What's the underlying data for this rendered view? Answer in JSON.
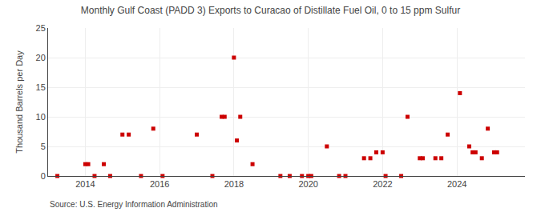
{
  "chart_data": {
    "type": "scatter",
    "title": "Monthly Gulf Coast (PADD 3) Exports to Curacao of Distillate Fuel Oil, 0 to 15 ppm Sulfur",
    "ylabel": "Thousand Barrels per Day",
    "source": "Source: U.S. Energy Information Administration",
    "color": "#cc0000",
    "marker": "square",
    "grid": true,
    "xlim": [
      2013.0,
      2025.83
    ],
    "xticks": [
      2014,
      2016,
      2018,
      2020,
      2022,
      2024
    ],
    "ylim": [
      0,
      25
    ],
    "yticks": [
      0,
      5,
      10,
      15,
      20,
      25
    ],
    "x": [
      2013.25,
      2014.0,
      2014.08,
      2014.25,
      2014.5,
      2014.67,
      2015.0,
      2015.17,
      2015.5,
      2015.83,
      2016.08,
      2017.0,
      2017.42,
      2017.67,
      2017.75,
      2018.0,
      2018.08,
      2018.17,
      2018.5,
      2019.25,
      2019.5,
      2019.83,
      2020.0,
      2020.08,
      2020.5,
      2020.83,
      2021.0,
      2021.5,
      2021.67,
      2021.83,
      2022.0,
      2022.08,
      2022.5,
      2022.67,
      2023.0,
      2023.08,
      2023.42,
      2023.58,
      2023.75,
      2024.08,
      2024.33,
      2024.42,
      2024.5,
      2024.67,
      2024.83,
      2025.0,
      2025.08
    ],
    "values": [
      0,
      2,
      2,
      0,
      2,
      0,
      7,
      7,
      0,
      8,
      0,
      7,
      0,
      10,
      10,
      20,
      6,
      10,
      2,
      0,
      0,
      0,
      0,
      0,
      5,
      0,
      0,
      3,
      3,
      4,
      4,
      0,
      0,
      10,
      3,
      3,
      3,
      3,
      7,
      14,
      5,
      4,
      4,
      3,
      8,
      4,
      4
    ]
  }
}
